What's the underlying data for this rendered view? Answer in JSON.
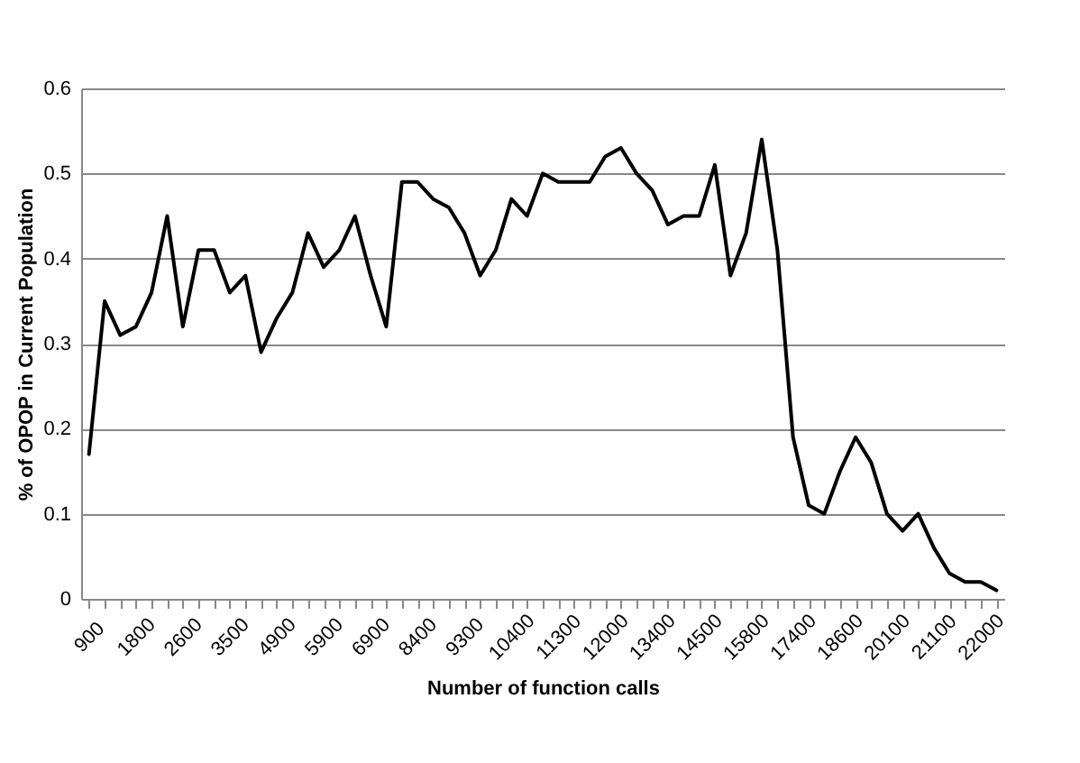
{
  "chart_data": {
    "type": "line",
    "xlabel": "Number of function calls",
    "ylabel": "% of OPOP in Current Population",
    "categories": [
      "900",
      null,
      null,
      "1800",
      null,
      null,
      "2600",
      null,
      null,
      "3500",
      null,
      null,
      "4900",
      null,
      null,
      "5900",
      null,
      null,
      "6900",
      null,
      null,
      "8400",
      null,
      null,
      "9300",
      null,
      null,
      "10400",
      null,
      null,
      "11300",
      null,
      null,
      "12000",
      null,
      null,
      "13400",
      null,
      null,
      "14500",
      null,
      null,
      "15800",
      null,
      null,
      "17400",
      null,
      null,
      "18600",
      null,
      null,
      "20100",
      null,
      null,
      "21100",
      null,
      null,
      "22000",
      null
    ],
    "series": [
      {
        "color": "#000000",
        "values": [
          0.17,
          0.35,
          0.31,
          0.32,
          0.36,
          0.45,
          0.32,
          0.41,
          0.41,
          0.36,
          0.38,
          0.29,
          0.33,
          0.36,
          0.43,
          0.39,
          0.41,
          0.45,
          0.38,
          0.32,
          0.49,
          0.49,
          0.47,
          0.46,
          0.43,
          0.38,
          0.41,
          0.47,
          0.45,
          0.5,
          0.49,
          0.49,
          0.49,
          0.52,
          0.53,
          0.5,
          0.48,
          0.44,
          0.45,
          0.45,
          0.51,
          0.38,
          0.43,
          0.54,
          0.41,
          0.19,
          0.11,
          0.1,
          0.15,
          0.19,
          0.16,
          0.1,
          0.08,
          0.1,
          0.06,
          0.03,
          0.02,
          0.02,
          0.01
        ]
      }
    ],
    "ylim": [
      0,
      0.6
    ],
    "yticks": [
      0,
      0.1,
      0.2,
      0.3,
      0.4,
      0.5,
      0.6
    ],
    "grid": "y",
    "marker": "none",
    "line_style": "solid"
  }
}
